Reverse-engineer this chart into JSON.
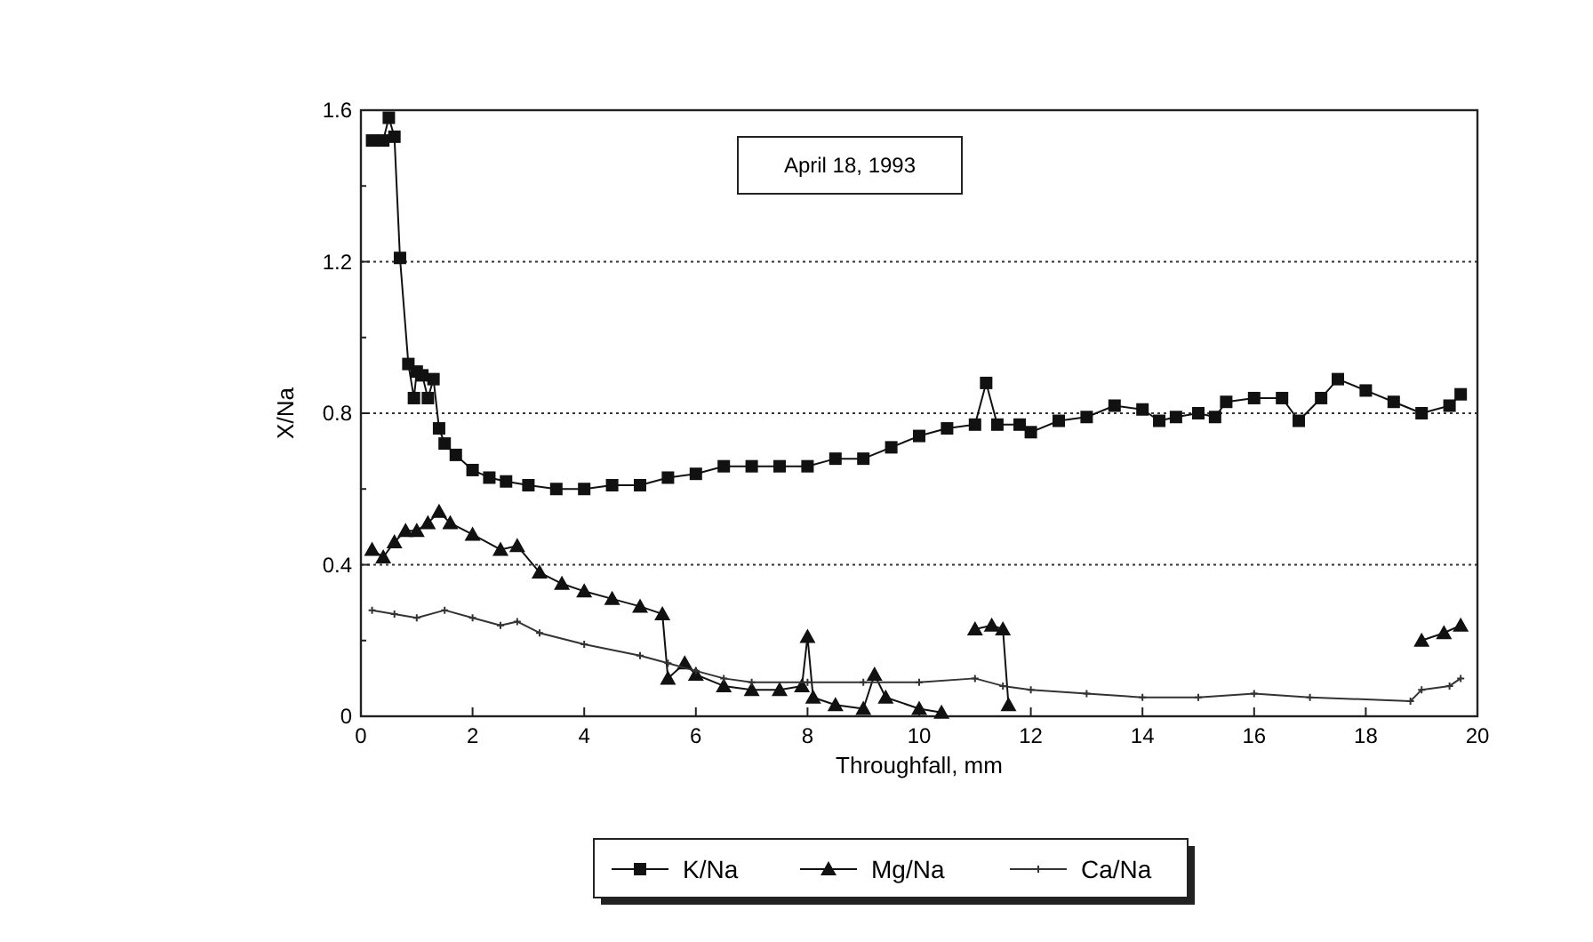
{
  "chart_data": {
    "type": "line",
    "xlabel": "Throughfall, mm",
    "ylabel": "X/Na",
    "annotations": [
      "April 18, 1993"
    ],
    "xlim": [
      0,
      20
    ],
    "xticks": [
      0,
      2,
      4,
      6,
      8,
      10,
      12,
      14,
      16,
      18,
      20
    ],
    "ylim": [
      0,
      1.6
    ],
    "yticks": [
      0,
      {
        "value": 0.2,
        "label": null
      },
      0.4,
      {
        "value": 0.6,
        "label": null
      },
      0.8,
      {
        "value": 1.0,
        "label": null
      },
      1.2,
      {
        "value": 1.4,
        "label": null
      },
      1.6
    ],
    "grid": "y",
    "legend": "bottom",
    "series": [
      {
        "name": "K/Na",
        "color": "#111111",
        "marker": "square",
        "x": [
          0.2,
          0.4,
          0.5,
          0.6,
          0.7,
          0.85,
          0.95,
          1.0,
          1.1,
          1.2,
          1.3,
          1.4,
          1.5,
          1.7,
          2.0,
          2.3,
          2.6,
          3.0,
          3.5,
          4.0,
          4.5,
          5.0,
          5.5,
          6.0,
          6.5,
          7.0,
          7.5,
          8.0,
          8.5,
          9.0,
          9.5,
          10.0,
          10.5,
          11.0,
          11.2,
          11.4,
          11.8,
          12.0,
          12.5,
          13.0,
          13.5,
          14.0,
          14.3,
          14.6,
          15.0,
          15.3,
          15.5,
          16.0,
          16.5,
          16.8,
          17.2,
          17.5,
          18.0,
          18.5,
          19.0,
          19.5,
          19.7
        ],
        "values": [
          1.52,
          1.52,
          1.58,
          1.53,
          1.21,
          0.93,
          0.84,
          0.91,
          0.9,
          0.84,
          0.89,
          0.76,
          0.72,
          0.69,
          0.65,
          0.63,
          0.62,
          0.61,
          0.6,
          0.6,
          0.61,
          0.61,
          0.63,
          0.64,
          0.66,
          0.66,
          0.66,
          0.66,
          0.68,
          0.68,
          0.71,
          0.74,
          0.76,
          0.77,
          0.88,
          0.77,
          0.77,
          0.75,
          0.78,
          0.79,
          0.82,
          0.81,
          0.78,
          0.79,
          0.8,
          0.79,
          0.83,
          0.84,
          0.84,
          0.78,
          0.84,
          0.89,
          0.86,
          0.83,
          0.8,
          0.82,
          0.85
        ]
      },
      {
        "name": "Mg/Na",
        "color": "#111111",
        "marker": "triangle",
        "x": [
          0.2,
          0.4,
          0.6,
          0.8,
          1.0,
          1.2,
          1.4,
          1.6,
          2.0,
          2.5,
          2.8,
          3.2,
          3.6,
          4.0,
          4.5,
          5.0,
          5.4,
          5.5,
          5.8,
          6.0,
          6.5,
          7.0,
          7.5,
          7.9,
          8.0,
          8.1,
          8.5,
          9.0,
          9.2,
          9.4,
          10.0,
          10.4,
          10.7,
          11.0,
          11.3,
          11.5,
          11.6,
          15.0,
          19.0,
          19.4,
          19.7
        ],
        "values": [
          0.44,
          0.42,
          0.46,
          0.49,
          0.49,
          0.51,
          0.54,
          0.51,
          0.48,
          0.44,
          0.45,
          0.38,
          0.35,
          0.33,
          0.31,
          0.29,
          0.27,
          0.1,
          0.14,
          0.11,
          0.08,
          0.07,
          0.07,
          0.08,
          0.21,
          0.05,
          0.03,
          0.02,
          0.11,
          0.05,
          0.02,
          0.01,
          null,
          0.23,
          0.24,
          0.23,
          0.03,
          null,
          0.2,
          0.22,
          0.24
        ]
      },
      {
        "name": "Ca/Na",
        "color": "#333333",
        "marker": "cross",
        "x": [
          0.2,
          0.6,
          1.0,
          1.5,
          2.0,
          2.5,
          2.8,
          3.2,
          4.0,
          5.0,
          5.5,
          6.0,
          6.5,
          7.0,
          8.0,
          9.0,
          10.0,
          11.0,
          11.5,
          12.0,
          13.0,
          14.0,
          15.0,
          16.0,
          17.0,
          18.8,
          19.0,
          19.5,
          19.7
        ],
        "values": [
          0.28,
          0.27,
          0.26,
          0.28,
          0.26,
          0.24,
          0.25,
          0.22,
          0.19,
          0.16,
          0.14,
          0.12,
          0.1,
          0.09,
          0.09,
          0.09,
          0.09,
          0.1,
          0.08,
          0.07,
          0.06,
          0.05,
          0.05,
          0.06,
          0.05,
          0.04,
          0.07,
          0.08,
          0.1
        ]
      }
    ]
  }
}
